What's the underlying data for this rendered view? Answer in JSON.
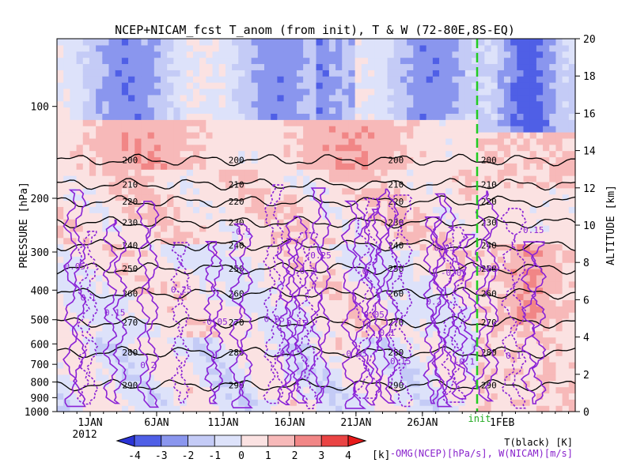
{
  "chart_data": {
    "type": "heatmap",
    "title": "NCEP+NICAM_fcst T_anom (from init), T & W  (72-80E,8S-EQ)",
    "ylabel_left": "PRESSURE [hPa]",
    "ylabel_right": "ALTITUDE [km]",
    "x_ticks": [
      "1JAN",
      "6JAN",
      "11JAN",
      "16JAN",
      "21JAN",
      "26JAN",
      "1FEB"
    ],
    "x_tick_year": "2012",
    "x_range_days": [
      -2.5,
      36.5
    ],
    "y_pressure_ticks": [
      100,
      200,
      300,
      400,
      500,
      600,
      700,
      800,
      900,
      1000
    ],
    "y_pressure_range": [
      1000,
      60
    ],
    "y_altitude_ticks": [
      0,
      2,
      4,
      6,
      8,
      10,
      12,
      14,
      16,
      18,
      20
    ],
    "init_marker": {
      "label": "init",
      "date": "29JAN"
    },
    "colorbar": {
      "levels": [
        -4,
        -3,
        -2,
        -1,
        0,
        1,
        2,
        3,
        4
      ],
      "colors": [
        "#2a33d6",
        "#4f5fe6",
        "#8a96ee",
        "#c4cbf6",
        "#dde2fa",
        "#fbe2e2",
        "#f7b9b9",
        "#f18686",
        "#ea4444",
        "#e81a1a"
      ],
      "unit": "[k]"
    },
    "temperature_contours": {
      "label": "T(black) [K]",
      "levels": [
        {
          "value": 200,
          "pressure": 150
        },
        {
          "value": 210,
          "pressure": 180
        },
        {
          "value": 220,
          "pressure": 205
        },
        {
          "value": 230,
          "pressure": 240
        },
        {
          "value": 240,
          "pressure": 285
        },
        {
          "value": 250,
          "pressure": 340
        },
        {
          "value": 260,
          "pressure": 410
        },
        {
          "value": 270,
          "pressure": 510
        },
        {
          "value": 280,
          "pressure": 640
        },
        {
          "value": 290,
          "pressure": 820
        }
      ]
    },
    "omega_contours": {
      "label": "-OMG(NCEP)[hPa/s], W(NICAM)[m/s]",
      "labels": [
        "0.05",
        "0.1",
        "0.15",
        "0.2",
        "0.25",
        "-0.05",
        "-0.1"
      ]
    }
  }
}
